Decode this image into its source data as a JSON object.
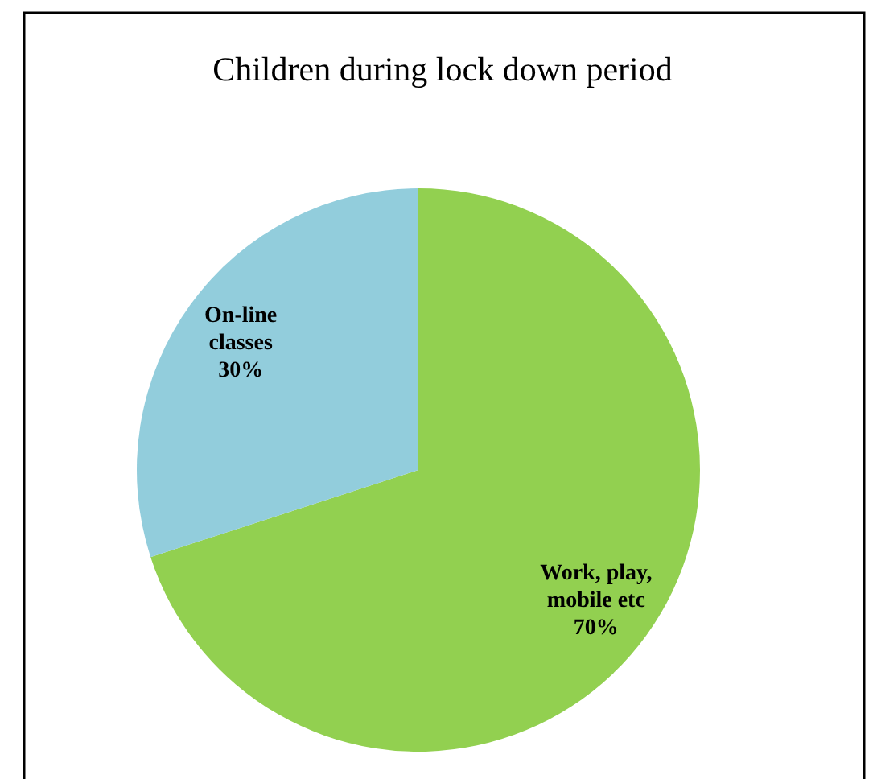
{
  "chart_data": {
    "type": "pie",
    "title": "Children during lock down period",
    "categories": [
      "Work, play, mobile etc",
      "On-line classes"
    ],
    "values": [
      70,
      30
    ],
    "colors": [
      "#92d050",
      "#92cddc"
    ],
    "value_labels": [
      "70%",
      "30%"
    ],
    "legend": false
  }
}
